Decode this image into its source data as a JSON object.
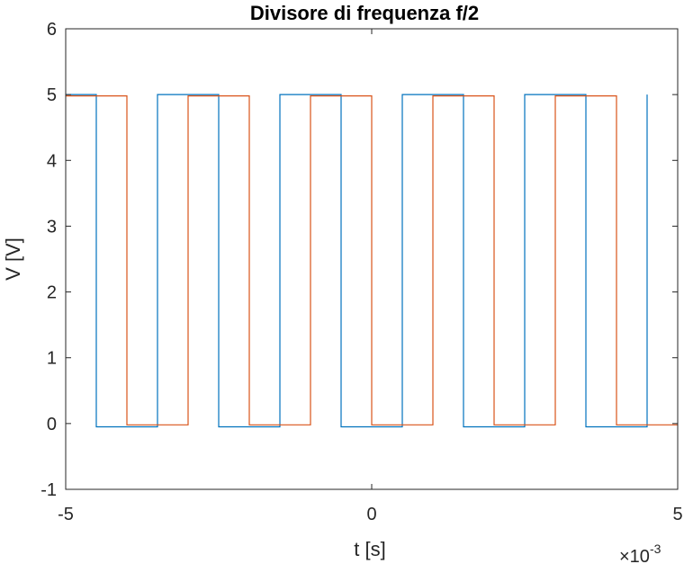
{
  "chart_data": {
    "type": "line",
    "title": "Divisore di frequenza f/2",
    "xlabel": "t [s]",
    "ylabel": "V [V]",
    "x_exponent_label": "×10",
    "x_exponent_power": "-3",
    "xlim": [
      -5,
      5
    ],
    "ylim": [
      -1,
      6
    ],
    "x_unit_scale": 0.001,
    "xticks": [
      -5,
      0,
      5
    ],
    "yticks": [
      -1,
      0,
      1,
      2,
      3,
      4,
      5,
      6
    ],
    "grid": false,
    "box": true,
    "series": [
      {
        "color": "#0072BD",
        "high": 5.0,
        "low": -0.05,
        "points": [
          [
            -5.0,
            5.0
          ],
          [
            -4.5,
            5.0
          ],
          [
            -4.5,
            -0.05
          ],
          [
            -3.5,
            -0.05
          ],
          [
            -3.5,
            5.0
          ],
          [
            -2.5,
            5.0
          ],
          [
            -2.5,
            -0.05
          ],
          [
            -1.5,
            -0.05
          ],
          [
            -1.5,
            5.0
          ],
          [
            -0.5,
            5.0
          ],
          [
            -0.5,
            -0.05
          ],
          [
            0.5,
            -0.05
          ],
          [
            0.5,
            5.0
          ],
          [
            1.5,
            5.0
          ],
          [
            1.5,
            -0.05
          ],
          [
            2.5,
            -0.05
          ],
          [
            2.5,
            5.0
          ],
          [
            3.5,
            5.0
          ],
          [
            3.5,
            -0.05
          ],
          [
            4.5,
            -0.05
          ],
          [
            4.5,
            5.0
          ]
        ]
      },
      {
        "color": "#D95319",
        "high": 4.98,
        "low": -0.02,
        "points": [
          [
            -5.0,
            4.98
          ],
          [
            -4.0,
            4.98
          ],
          [
            -4.0,
            -0.02
          ],
          [
            -3.0,
            -0.02
          ],
          [
            -3.0,
            4.98
          ],
          [
            -2.0,
            4.98
          ],
          [
            -2.0,
            -0.02
          ],
          [
            -1.0,
            -0.02
          ],
          [
            -1.0,
            4.98
          ],
          [
            0.0,
            4.98
          ],
          [
            0.0,
            -0.02
          ],
          [
            1.0,
            -0.02
          ],
          [
            1.0,
            4.98
          ],
          [
            2.0,
            4.98
          ],
          [
            2.0,
            -0.02
          ],
          [
            3.0,
            -0.02
          ],
          [
            3.0,
            4.98
          ],
          [
            4.0,
            4.98
          ],
          [
            4.0,
            -0.02
          ],
          [
            5.0,
            -0.02
          ]
        ]
      }
    ]
  }
}
